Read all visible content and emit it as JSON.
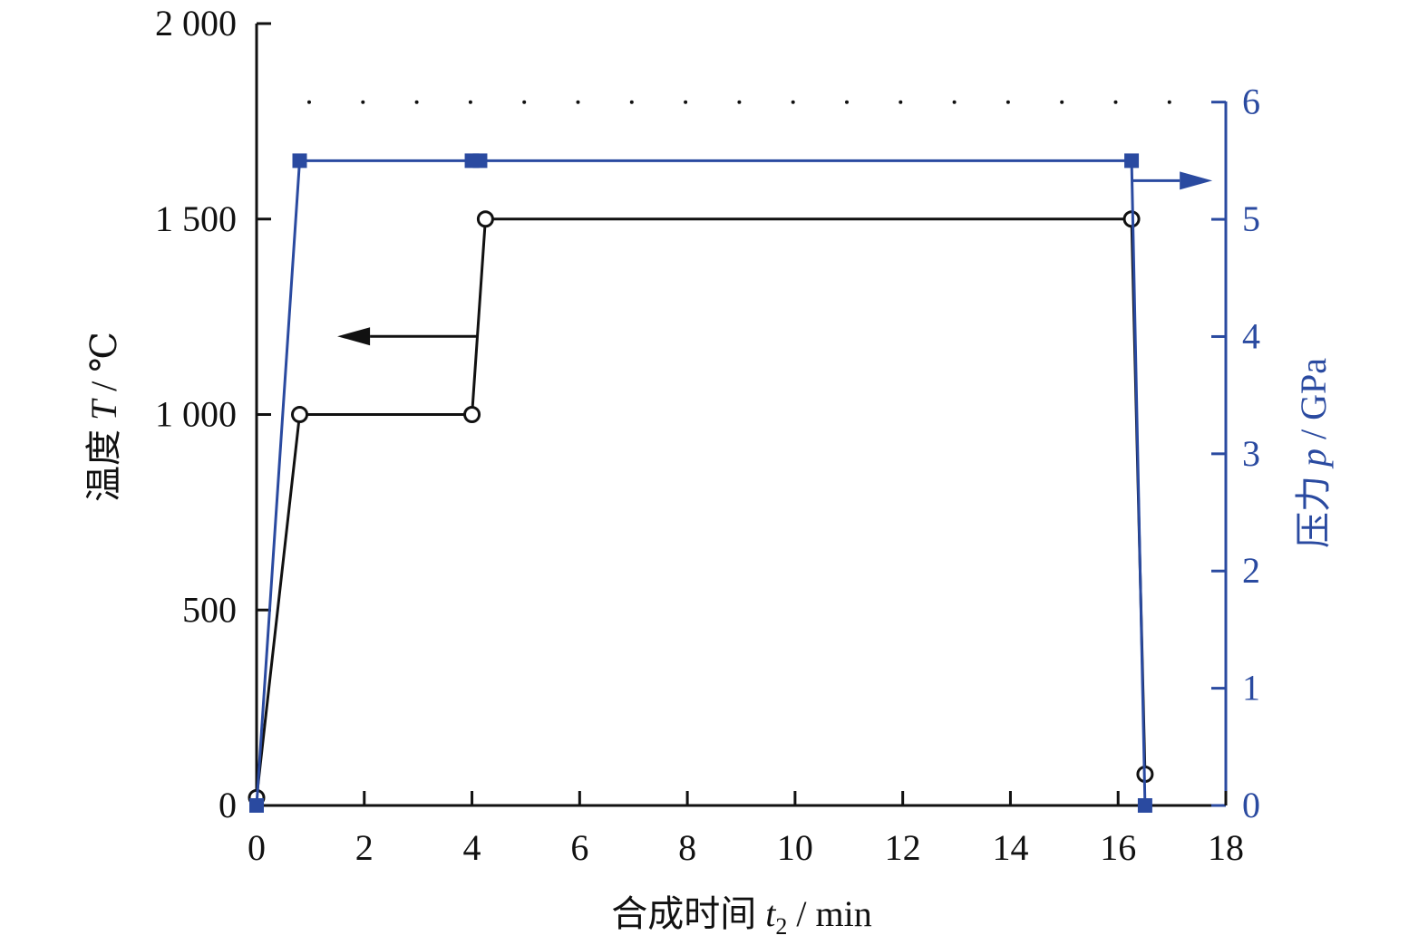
{
  "chart_data": {
    "type": "line",
    "xlabel": {
      "prefix": "合成时间 ",
      "var": "t",
      "sub": "2",
      "unit": " / min"
    },
    "ylabel_left": {
      "prefix": "温度 ",
      "var": "T",
      "unit": " / ℃"
    },
    "ylabel_right": {
      "prefix": "压力 ",
      "var": "p",
      "unit": " / GPa"
    },
    "x_ticks": [
      "0",
      "2",
      "4",
      "6",
      "8",
      "10",
      "12",
      "14",
      "16",
      "18"
    ],
    "y_left_ticks": [
      "0",
      "500",
      "1 000",
      "1 500",
      "2 000"
    ],
    "y_right_ticks": [
      "0",
      "1",
      "2",
      "3",
      "4",
      "5",
      "6"
    ],
    "xlim": [
      0,
      18
    ],
    "ylim_left": [
      0,
      2000
    ],
    "ylim_right": [
      0,
      6.67
    ],
    "reference_line": {
      "y_right": 6,
      "style": "dotted"
    },
    "series": [
      {
        "axis": "left",
        "marker": "open-circle",
        "color": "#111111",
        "points": [
          [
            0,
            20
          ],
          [
            0.8,
            1000
          ],
          [
            4.0,
            1000
          ],
          [
            4.25,
            1500
          ],
          [
            16.25,
            1500
          ],
          [
            16.5,
            80
          ]
        ]
      },
      {
        "axis": "right",
        "marker": "filled-square",
        "color": "#2a4aa0",
        "points": [
          [
            0,
            0
          ],
          [
            0.8,
            5.5
          ],
          [
            4.0,
            5.5
          ],
          [
            4.15,
            5.5
          ],
          [
            16.25,
            5.5
          ],
          [
            16.5,
            0
          ]
        ]
      }
    ],
    "arrows": [
      {
        "series": 0,
        "direction": "left",
        "from": [
          4.1,
          1200
        ],
        "to": [
          1.5,
          1200
        ]
      },
      {
        "series": 1,
        "direction": "right",
        "from": [
          16.25,
          5.33
        ],
        "to": [
          17.75,
          5.33
        ]
      }
    ],
    "colors": {
      "left": "#111111",
      "right": "#2a4aa0"
    }
  }
}
